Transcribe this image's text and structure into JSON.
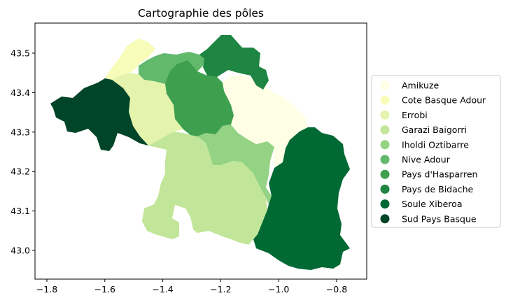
{
  "chart_data": {
    "type": "choropleth",
    "title": "Cartographie des pôles",
    "xlim": [
      -1.85,
      -0.73
    ],
    "ylim": [
      42.92,
      43.58
    ],
    "x_ticks": [
      -1.8,
      -1.6,
      -1.4,
      -1.2,
      -1.0,
      -0.8
    ],
    "x_tick_labels": [
      "−1.8",
      "−1.6",
      "−1.4",
      "−1.2",
      "−1.0",
      "−0.8"
    ],
    "y_ticks": [
      43.0,
      43.1,
      43.2,
      43.3,
      43.4,
      43.5
    ],
    "y_tick_labels": [
      "43.0",
      "43.1",
      "43.2",
      "43.3",
      "43.4",
      "43.5"
    ],
    "grid": false,
    "colormap": "YlGn",
    "legend_position": "right",
    "categories": [
      {
        "name": "Amikuze",
        "color": "#ffffe5"
      },
      {
        "name": "Cote Basque Adour",
        "color": "#f7fcb9"
      },
      {
        "name": "Errobi",
        "color": "#e4f4ac"
      },
      {
        "name": "Garazi Baigorri",
        "color": "#c2e699"
      },
      {
        "name": "Iholdi Oztibarre",
        "color": "#93d383"
      },
      {
        "name": "Nive Adour",
        "color": "#61b96c"
      },
      {
        "name": "Pays d'Hasparren",
        "color": "#3ea04f"
      },
      {
        "name": "Pays de Bidache",
        "color": "#1f8542"
      },
      {
        "name": "Soule Xiberoa",
        "color": "#006934"
      },
      {
        "name": "Sud Pays Basque",
        "color": "#004529"
      }
    ]
  }
}
